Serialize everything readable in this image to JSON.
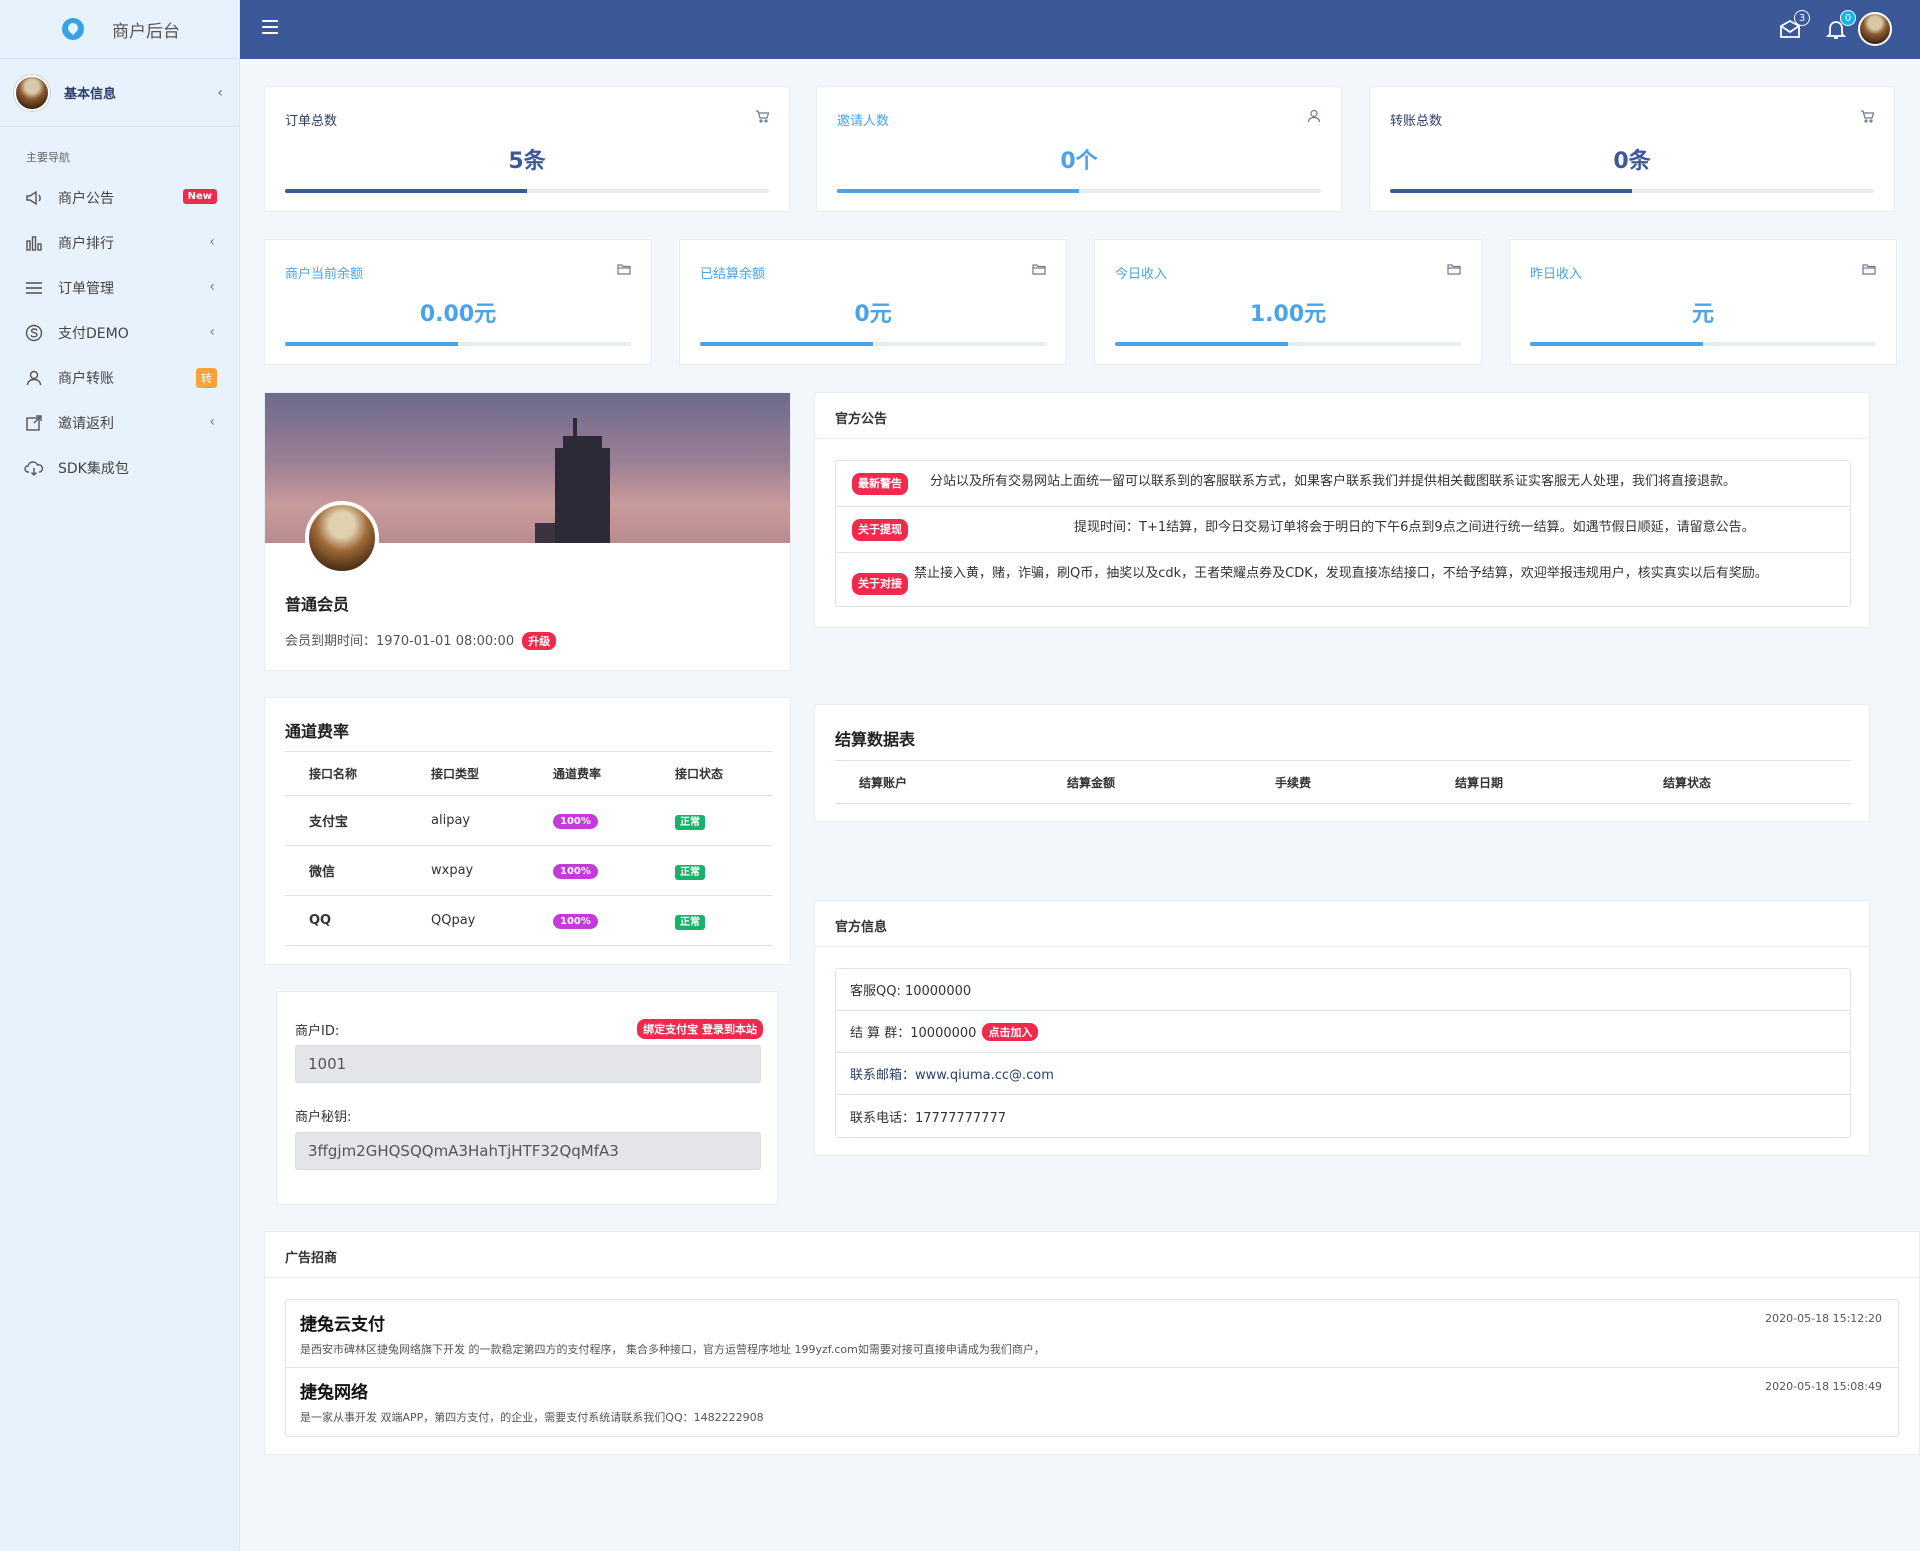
{
  "app": {
    "title": "商户后台"
  },
  "user": {
    "name": "基本信息"
  },
  "nav": {
    "heading": "主要导航",
    "items": [
      {
        "label": "商户公告",
        "icon": "megaphone-icon",
        "badge": "New"
      },
      {
        "label": "商户排行",
        "icon": "bar-chart-icon"
      },
      {
        "label": "订单管理",
        "icon": "list-icon"
      },
      {
        "label": "支付DEMO",
        "icon": "skype-icon"
      },
      {
        "label": "商户转账",
        "icon": "user-icon",
        "badge": "转"
      },
      {
        "label": "邀请返利",
        "icon": "share-icon"
      },
      {
        "label": "SDK集成包",
        "icon": "cloud-download-icon"
      }
    ]
  },
  "topbar": {
    "mail_count": "3",
    "bell_count": "0"
  },
  "stats_top": [
    {
      "title": "订单总数",
      "value": "5条",
      "progress": 0.5,
      "icon": "cart-icon"
    },
    {
      "title": "邀请人数",
      "value": "0个",
      "progress": 0.5,
      "icon": "user-icon"
    },
    {
      "title": "转账总数",
      "value": "0条",
      "progress": 0.5,
      "icon": "cart-icon"
    }
  ],
  "stats_mid": [
    {
      "title": "商户当前余额",
      "value": "0.00元",
      "progress": 0.5,
      "icon": "folder-icon"
    },
    {
      "title": "已结算余额",
      "value": "0元",
      "progress": 0.5,
      "icon": "folder-icon"
    },
    {
      "title": "今日收入",
      "value": "1.00元",
      "progress": 0.5,
      "icon": "folder-icon"
    },
    {
      "title": "昨日收入",
      "value": "元",
      "progress": 0.5,
      "icon": "folder-icon"
    }
  ],
  "profile": {
    "level": "普通会员",
    "expire_label": "会员到期时间：",
    "expire_value": "1970-01-01 08:00:00",
    "upgrade": "升级"
  },
  "notices": {
    "title": "官方公告",
    "items": [
      {
        "tag": "最新警告",
        "text": "分站以及所有交易网站上面统一留可以联系到的客服联系方式，如果客户联系我们并提供相关截图联系证实客服无人处理，我们将直接退款。"
      },
      {
        "tag": "关于提现",
        "text": "提现时间：T+1结算，即今日交易订单将会于明日的下午6点到9点之间进行统一结算。如遇节假日顺延，请留意公告。"
      },
      {
        "tag": "关于对接",
        "text": "禁止接入黄，赌，诈骗，刷Q币，抽奖以及cdk，王者荣耀点券及CDK，发现直接冻结接口，不给予结算，欢迎举报违规用户，核实真实以后有奖励。"
      }
    ]
  },
  "channels": {
    "title": "通道费率",
    "headers": [
      "接口名称",
      "接口类型",
      "通道费率",
      "接口状态"
    ],
    "rows": [
      {
        "name": "支付宝",
        "type": "alipay",
        "rate": "100%",
        "status": "正常"
      },
      {
        "name": "微信",
        "type": "wxpay",
        "rate": "100%",
        "status": "正常"
      },
      {
        "name": "QQ",
        "type": "QQpay",
        "rate": "100%",
        "status": "正常"
      }
    ]
  },
  "merchant": {
    "id_label": "商户ID:",
    "id_value": "1001",
    "key_label": "商户秘钥:",
    "key_value": "3ffgjm2GHQSQQmA3HahTjHTF32QqMfA3",
    "bind_button": "绑定支付宝 登录到本站"
  },
  "settlement": {
    "title": "结算数据表",
    "headers": [
      "结算账户",
      "结算金额",
      "手续费",
      "结算日期",
      "结算状态"
    ]
  },
  "info": {
    "title": "官方信息",
    "rows": [
      {
        "text": "客服QQ: 10000000"
      },
      {
        "text": "结 算 群：10000000",
        "button": "点击加入"
      },
      {
        "text": "联系邮箱：www.qiuma.cc@.com"
      },
      {
        "text": "联系电话：17777777777"
      }
    ]
  },
  "ads": {
    "title": "广告招商",
    "items": [
      {
        "name": "捷兔云支付",
        "desc": "是西安市碑林区捷兔网络旗下开发 的一款稳定第四方的支付程序， 集合多种接口，官方运营程序地址 199yzf.com如需要对接可直接申请成为我们商户，",
        "time": "2020-05-18 15:12:20"
      },
      {
        "name": "捷兔网络",
        "desc": "是一家从事开发 双端APP，第四方支付，的企业，需要支付系统请联系我们QQ：1482222908",
        "time": "2020-05-18 15:08:49"
      }
    ]
  },
  "colors": {
    "topbar": "#3b5998",
    "accent": "#4aa3e8",
    "dark_blue": "#3b5998",
    "badge_red": "#f0294d",
    "rate_purple": "#c53bda",
    "ok_green": "#18b36a"
  }
}
